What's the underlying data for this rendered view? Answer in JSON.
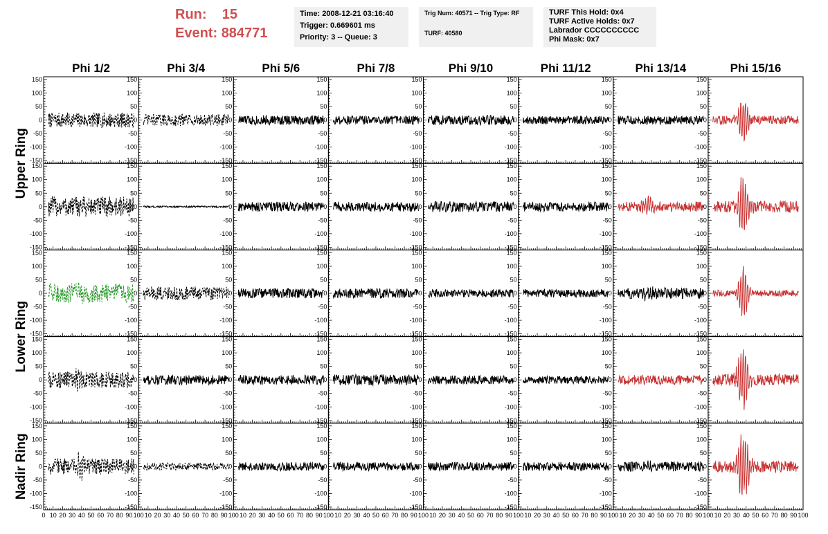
{
  "header": {
    "run_label": "Run:",
    "run_value": "15",
    "event_label": "Event:",
    "event_value": "884771",
    "time": "Time: 2008-12-21 03:16:40",
    "trigger": "Trigger: 0.669601 ms",
    "priority": "Priority: 3 -- Queue: 3",
    "trig_num": "Trig Num: 40571 -- Trig Type: RF",
    "turf": "TURF: 40580",
    "turf_hold": "TURF This Hold: 0x4",
    "turf_active": "TURF Active Holds: 0x7",
    "labrador": "Labrador CCCCCCCCCC",
    "phi_mask": "Phi Mask: 0x7"
  },
  "chart_data": {
    "type": "line",
    "columns": [
      "Phi 1/2",
      "Phi 3/4",
      "Phi 5/6",
      "Phi 7/8",
      "Phi 9/10",
      "Phi 11/12",
      "Phi 13/14",
      "Phi 15/16"
    ],
    "rows": [
      "Upper Ring",
      "Lower Ring",
      "Nadir Ring"
    ],
    "xlim": [
      0,
      100
    ],
    "ylim": [
      -150,
      150
    ],
    "x_ticks": [
      0,
      10,
      20,
      30,
      40,
      50,
      60,
      70,
      80,
      90,
      100
    ],
    "y_ticks": [
      -150,
      -100,
      -50,
      0,
      50,
      100,
      150
    ],
    "colors": {
      "normal": "#000000",
      "triggered": "#c83232",
      "highlight": "#2a9a2a"
    },
    "panels": [
      {
        "row": 0,
        "col": 0,
        "style": "dashed",
        "color": "normal",
        "amp": 28,
        "burst": 0
      },
      {
        "row": 0,
        "col": 1,
        "style": "dashed",
        "color": "normal",
        "amp": 22,
        "burst": 0
      },
      {
        "row": 0,
        "col": 2,
        "style": "solid",
        "color": "normal",
        "amp": 18,
        "burst": 0
      },
      {
        "row": 0,
        "col": 3,
        "style": "solid",
        "color": "normal",
        "amp": 16,
        "burst": 0
      },
      {
        "row": 0,
        "col": 4,
        "style": "solid",
        "color": "normal",
        "amp": 18,
        "burst": 0
      },
      {
        "row": 0,
        "col": 5,
        "style": "solid",
        "color": "normal",
        "amp": 15,
        "burst": 0
      },
      {
        "row": 0,
        "col": 6,
        "style": "solid",
        "color": "normal",
        "amp": 16,
        "burst": 0
      },
      {
        "row": 0,
        "col": 7,
        "style": "solid",
        "color": "triggered",
        "amp": 16,
        "burst": 95
      },
      {
        "row": 1,
        "col": 0,
        "style": "dashed",
        "color": "normal",
        "amp": 38,
        "burst": 0
      },
      {
        "row": 1,
        "col": 1,
        "style": "solid",
        "color": "normal",
        "amp": 3,
        "burst": 0
      },
      {
        "row": 1,
        "col": 2,
        "style": "solid",
        "color": "normal",
        "amp": 18,
        "burst": 0
      },
      {
        "row": 1,
        "col": 3,
        "style": "solid",
        "color": "normal",
        "amp": 18,
        "burst": 0
      },
      {
        "row": 1,
        "col": 4,
        "style": "solid",
        "color": "normal",
        "amp": 20,
        "burst": 0
      },
      {
        "row": 1,
        "col": 5,
        "style": "solid",
        "color": "normal",
        "amp": 18,
        "burst": 0
      },
      {
        "row": 1,
        "col": 6,
        "style": "solid",
        "color": "triggered",
        "amp": 18,
        "burst": 40
      },
      {
        "row": 1,
        "col": 7,
        "style": "solid",
        "color": "triggered",
        "amp": 22,
        "burst": 140
      },
      {
        "row": 2,
        "col": 0,
        "style": "dashed",
        "color": "highlight",
        "amp": 35,
        "burst": 25
      },
      {
        "row": 2,
        "col": 1,
        "style": "dashed",
        "color": "normal",
        "amp": 25,
        "burst": 0
      },
      {
        "row": 2,
        "col": 2,
        "style": "solid",
        "color": "normal",
        "amp": 18,
        "burst": 0
      },
      {
        "row": 2,
        "col": 3,
        "style": "solid",
        "color": "normal",
        "amp": 18,
        "burst": 0
      },
      {
        "row": 2,
        "col": 4,
        "style": "solid",
        "color": "normal",
        "amp": 15,
        "burst": 0
      },
      {
        "row": 2,
        "col": 5,
        "style": "solid",
        "color": "normal",
        "amp": 15,
        "burst": 0
      },
      {
        "row": 2,
        "col": 6,
        "style": "solid",
        "color": "normal",
        "amp": 20,
        "burst": 20
      },
      {
        "row": 2,
        "col": 7,
        "style": "solid",
        "color": "triggered",
        "amp": 12,
        "burst": 110
      },
      {
        "row": 3,
        "col": 0,
        "style": "dashed",
        "color": "normal",
        "amp": 30,
        "burst": 25
      },
      {
        "row": 3,
        "col": 1,
        "style": "solid",
        "color": "normal",
        "amp": 18,
        "burst": 0
      },
      {
        "row": 3,
        "col": 2,
        "style": "solid",
        "color": "normal",
        "amp": 18,
        "burst": 0
      },
      {
        "row": 3,
        "col": 3,
        "style": "solid",
        "color": "normal",
        "amp": 20,
        "burst": 0
      },
      {
        "row": 3,
        "col": 4,
        "style": "solid",
        "color": "normal",
        "amp": 16,
        "burst": 0
      },
      {
        "row": 3,
        "col": 5,
        "style": "solid",
        "color": "normal",
        "amp": 14,
        "burst": 0
      },
      {
        "row": 3,
        "col": 6,
        "style": "solid",
        "color": "triggered",
        "amp": 18,
        "burst": 0
      },
      {
        "row": 3,
        "col": 7,
        "style": "solid",
        "color": "triggered",
        "amp": 22,
        "burst": 140
      },
      {
        "row": 4,
        "col": 0,
        "style": "dashed",
        "color": "normal",
        "amp": 30,
        "burst": 50
      },
      {
        "row": 4,
        "col": 1,
        "style": "dashed",
        "color": "normal",
        "amp": 14,
        "burst": 0
      },
      {
        "row": 4,
        "col": 2,
        "style": "solid",
        "color": "normal",
        "amp": 16,
        "burst": 0
      },
      {
        "row": 4,
        "col": 3,
        "style": "solid",
        "color": "normal",
        "amp": 16,
        "burst": 0
      },
      {
        "row": 4,
        "col": 4,
        "style": "solid",
        "color": "normal",
        "amp": 16,
        "burst": 0
      },
      {
        "row": 4,
        "col": 5,
        "style": "solid",
        "color": "normal",
        "amp": 16,
        "burst": 0
      },
      {
        "row": 4,
        "col": 6,
        "style": "solid",
        "color": "normal",
        "amp": 18,
        "burst": 20
      },
      {
        "row": 4,
        "col": 7,
        "style": "solid",
        "color": "triggered",
        "amp": 22,
        "burst": 145
      }
    ]
  }
}
